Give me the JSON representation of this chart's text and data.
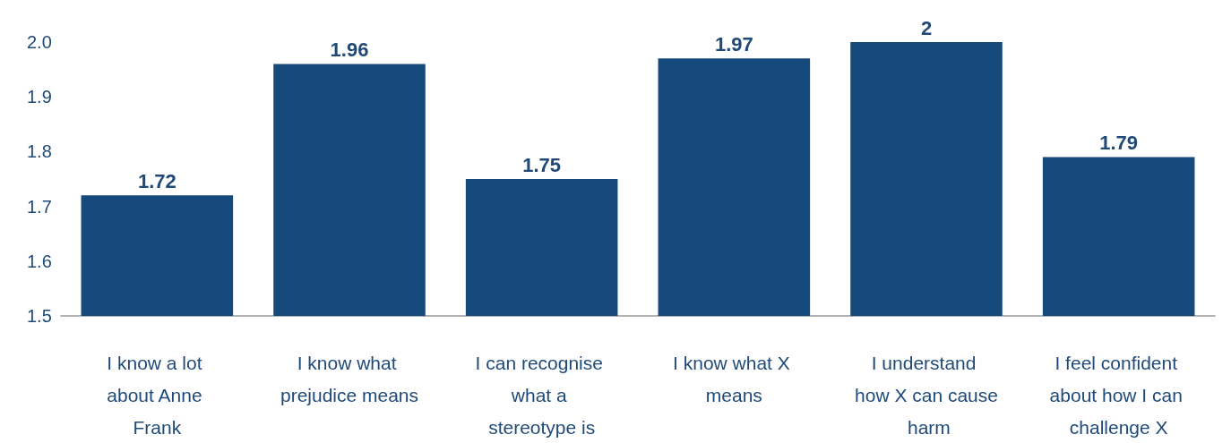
{
  "chart_data": {
    "type": "bar",
    "categories": [
      "I know a lot about Anne Frank",
      "I know what prejudice means",
      "I can recognise what a stereotype is",
      "I know what X means",
      "I understand how X can cause harm",
      "I feel confident about how I can challenge X"
    ],
    "values": [
      1.72,
      1.96,
      1.75,
      1.97,
      2,
      1.79
    ],
    "value_labels": [
      "1.72",
      "1.96",
      "1.75",
      "1.97",
      "2",
      "1.79"
    ],
    "color": "#174a7c",
    "ylim": [
      1.5,
      2.0
    ],
    "yticks": [
      {
        "value": 1.5,
        "label": "1.5"
      },
      {
        "value": 1.6,
        "label": "1.6"
      },
      {
        "value": 1.7,
        "label": "1.7"
      },
      {
        "value": 1.8,
        "label": "1.8"
      },
      {
        "value": 1.9,
        "label": "1.9"
      },
      {
        "value": 2.0,
        "label": "2.0"
      }
    ],
    "grid": false
  }
}
